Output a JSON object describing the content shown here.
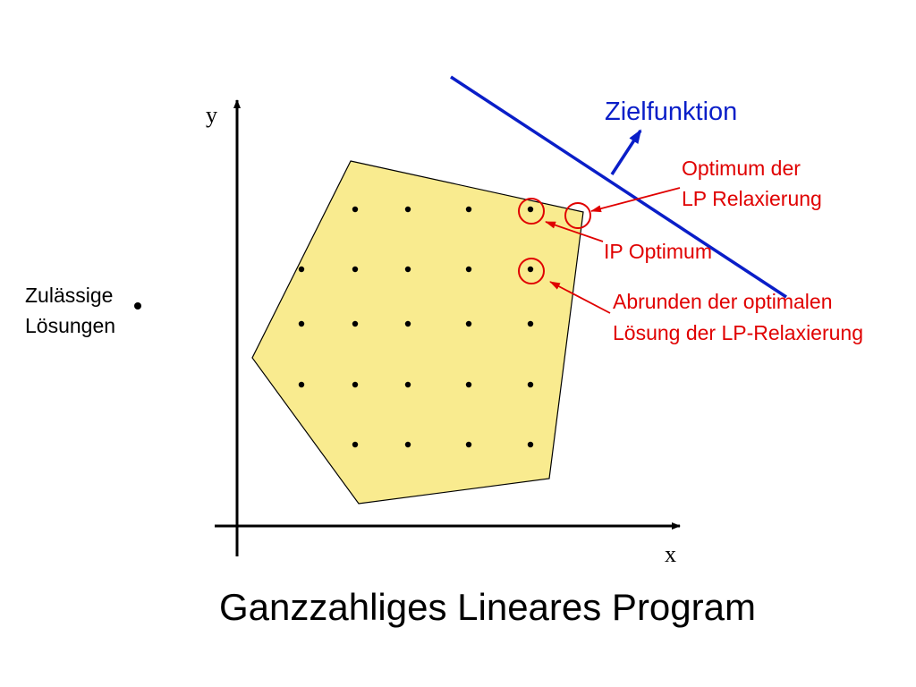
{
  "labels": {
    "y_axis": "y",
    "x_axis": "x",
    "objective": "Zielfunktion",
    "lp_optimum_line1": "Optimum der",
    "lp_optimum_line2": "LP Relaxierung",
    "ip_optimum": "IP Optimum",
    "rounding_line1": "Abrunden der optimalen",
    "rounding_line2": "Lösung der LP-Relaxierung",
    "feasible_line1": "Zulässige",
    "feasible_line2": "Lösungen"
  },
  "title": "Ganzzahliges Lineares Program",
  "colors": {
    "region_fill": "#f9eb8f",
    "objective": "#0a1ec8",
    "annotation": "#e00000",
    "axis": "#000000"
  }
}
